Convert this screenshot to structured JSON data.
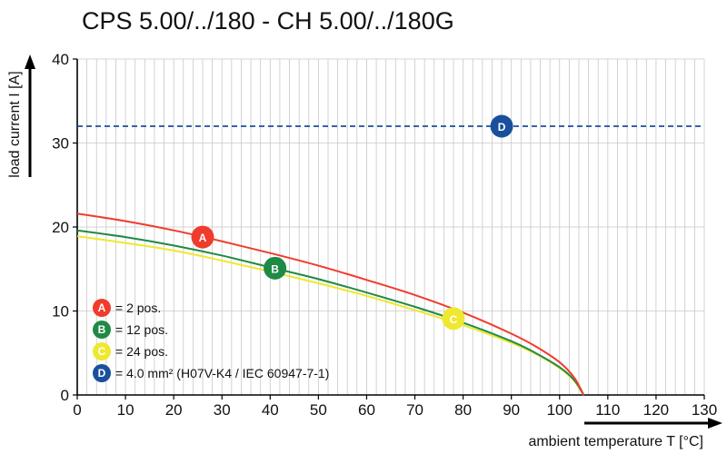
{
  "chart_data": {
    "type": "line",
    "title": "CPS 5.00/../180 - CH 5.00/../180G",
    "xlabel": "ambient temperature T [°C]",
    "ylabel": "load current I [A]",
    "xlim": [
      0,
      130
    ],
    "ylim": [
      0,
      40
    ],
    "xticks": [
      0,
      10,
      20,
      30,
      40,
      50,
      60,
      70,
      80,
      90,
      100,
      110,
      120,
      130
    ],
    "yticks": [
      0,
      10,
      20,
      30,
      40
    ],
    "grid": true,
    "legend_position": "bottom-left",
    "series": [
      {
        "name": "A",
        "label": "= 2 pos.",
        "color": "#f03c2c",
        "style": "solid",
        "x": [
          0,
          10,
          20,
          30,
          40,
          50,
          60,
          70,
          80,
          90,
          95,
          100,
          103,
          105
        ],
        "y": [
          21.6,
          20.7,
          19.6,
          18.3,
          16.9,
          15.4,
          13.7,
          11.9,
          9.8,
          7.3,
          5.8,
          3.9,
          2.1,
          0
        ]
      },
      {
        "name": "B",
        "label": "= 12 pos.",
        "color": "#1f8a45",
        "style": "solid",
        "x": [
          0,
          10,
          20,
          30,
          40,
          50,
          60,
          70,
          80,
          90,
          95,
          100,
          103,
          105
        ],
        "y": [
          19.6,
          18.8,
          17.8,
          16.6,
          15.2,
          13.8,
          12.2,
          10.5,
          8.6,
          6.4,
          5.0,
          3.3,
          1.8,
          0
        ]
      },
      {
        "name": "C",
        "label": "= 24 pos.",
        "color": "#eee830",
        "style": "solid",
        "x": [
          0,
          10,
          20,
          30,
          40,
          50,
          60,
          70,
          80,
          90,
          95,
          100,
          103,
          105
        ],
        "y": [
          18.9,
          18.1,
          17.2,
          16.0,
          14.7,
          13.3,
          11.8,
          10.1,
          8.3,
          6.2,
          4.9,
          3.2,
          1.7,
          0
        ]
      },
      {
        "name": "D",
        "label": "= 4.0 mm² (H07V-K4 / IEC 60947-7-1)",
        "color": "#1a4f9c",
        "style": "dashed",
        "x": [
          0,
          130
        ],
        "y": [
          32,
          32
        ]
      }
    ],
    "markers": [
      {
        "letter": "A",
        "x": 26,
        "y": 18.8,
        "color": "#f03c2c"
      },
      {
        "letter": "B",
        "x": 41,
        "y": 15.1,
        "color": "#1f8a45"
      },
      {
        "letter": "C",
        "x": 78,
        "y": 9.1,
        "color": "#eee830"
      },
      {
        "letter": "D",
        "x": 88,
        "y": 32,
        "color": "#1a4f9c"
      }
    ]
  }
}
